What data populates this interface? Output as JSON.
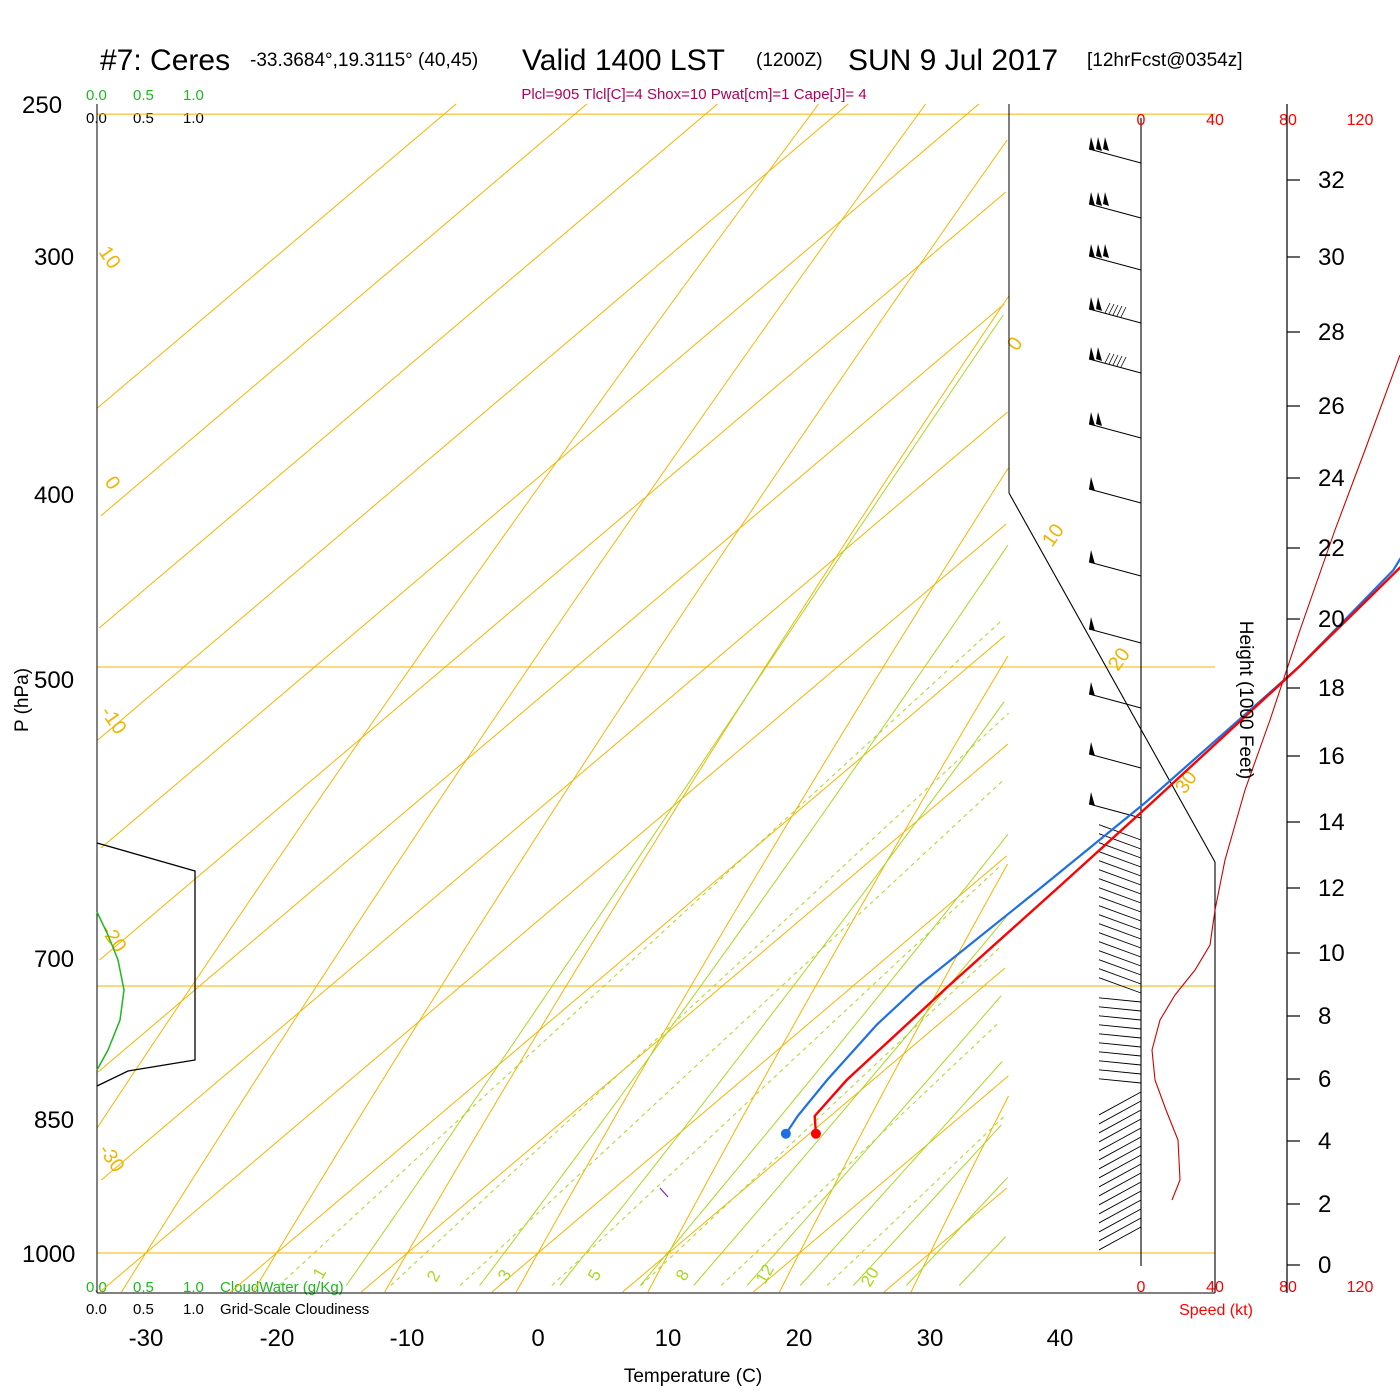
{
  "header": {
    "station": "#7: Ceres",
    "coords": "-33.3684°,19.3115° (40,45)",
    "valid": "Valid 1400 LST",
    "utc": "(1200Z)",
    "date": "SUN 9 Jul 2017",
    "forecast": "[12hrFcst@0354z]"
  },
  "params": "Plcl=905 Tlcl[C]=4 Shox=10 Pwat[cm]=1 Cape[J]= 4",
  "cloud_scale": {
    "green_ticks": [
      "0.0",
      "0.5",
      "1.0"
    ],
    "black_ticks": [
      "0.0",
      "0.5",
      "1.0"
    ],
    "green_label": "CloudWater (g/Kg)",
    "black_label": "Grid-Scale Cloudiness"
  },
  "speed_axis": {
    "ticks": [
      "0",
      "40",
      "80",
      "120"
    ],
    "label": "Speed (kt)"
  },
  "height_axis": {
    "label": "Height (1000 Feet)",
    "ticks": [
      "0",
      "2",
      "4",
      "6",
      "8",
      "10",
      "12",
      "14",
      "16",
      "18",
      "20",
      "22",
      "24",
      "26",
      "28",
      "30",
      "32"
    ]
  },
  "y_axis": {
    "label": "P (hPa)",
    "ticks": [
      "250",
      "300",
      "400",
      "500",
      "700",
      "850",
      "1000"
    ]
  },
  "x_axis": {
    "label": "Temperature (C)",
    "ticks": [
      "-30",
      "-20",
      "-10",
      "0",
      "10",
      "20",
      "30",
      "40"
    ]
  },
  "isotherm_labels": [
    "10",
    "0",
    "-10",
    "-20",
    "-30",
    "0",
    "10",
    "20",
    "30"
  ],
  "mixing_ratio_labels": [
    "1",
    "2",
    "3",
    "5",
    "8",
    "12",
    "20"
  ],
  "colors": {
    "temperature": "#ff0000",
    "dewpoint": "#1e6fe6",
    "isotherm": "#f5b400",
    "dry_adiabat": "#f5b400",
    "moist_adiabat": "#a8d820",
    "mixing_ratio": "#a8d820",
    "cloud_water": "#1db81d",
    "speed": "#d00000"
  },
  "chart_data": {
    "type": "line",
    "title": "#7: Ceres Valid 1400 LST (1200Z) SUN 9 Jul 2017 [12hrFcst@0354z]",
    "xlabel": "Temperature (C)",
    "ylabel": "P (hPa)",
    "x_range": [
      -34,
      36
    ],
    "y_range": [
      1000,
      250
    ],
    "log_scale_y": true,
    "series": [
      {
        "name": "Temperature",
        "points": [
          [
            930,
            10.5
          ],
          [
            920,
            8.8
          ],
          [
            900,
            8.0
          ],
          [
            850,
            7.3
          ],
          [
            800,
            6.8
          ],
          [
            760,
            6.3
          ],
          [
            700,
            5.3
          ],
          [
            650,
            3.8
          ],
          [
            610,
            1.3
          ],
          [
            580,
            -1.0
          ],
          [
            540,
            -3.0
          ],
          [
            500,
            -4.5
          ],
          [
            450,
            -6.5
          ],
          [
            400,
            -8.5
          ],
          [
            360,
            -11.5
          ],
          [
            330,
            -15.0
          ],
          [
            300,
            -20.0
          ],
          [
            280,
            -24.0
          ],
          [
            265,
            -27.5
          ]
        ]
      },
      {
        "name": "Dewpoint",
        "points": [
          [
            930,
            8.2
          ],
          [
            920,
            7.5
          ],
          [
            900,
            6.5
          ],
          [
            870,
            5.3
          ],
          [
            850,
            5.0
          ],
          [
            800,
            5.5
          ],
          [
            760,
            5.8
          ],
          [
            700,
            5.3
          ],
          [
            660,
            3.8
          ],
          [
            630,
            0.5
          ],
          [
            600,
            -3.5
          ],
          [
            580,
            -7.0
          ],
          [
            540,
            -14.5
          ],
          [
            500,
            -22.0
          ],
          [
            480,
            -27.0
          ],
          [
            440,
            -37.0
          ],
          [
            400,
            -40.0
          ],
          [
            365,
            -37.5
          ],
          [
            345,
            -38.0
          ],
          [
            320,
            -41.5
          ],
          [
            300,
            -45.5
          ],
          [
            285,
            -49.0
          ],
          [
            265,
            -51.5
          ]
        ]
      }
    ]
  }
}
